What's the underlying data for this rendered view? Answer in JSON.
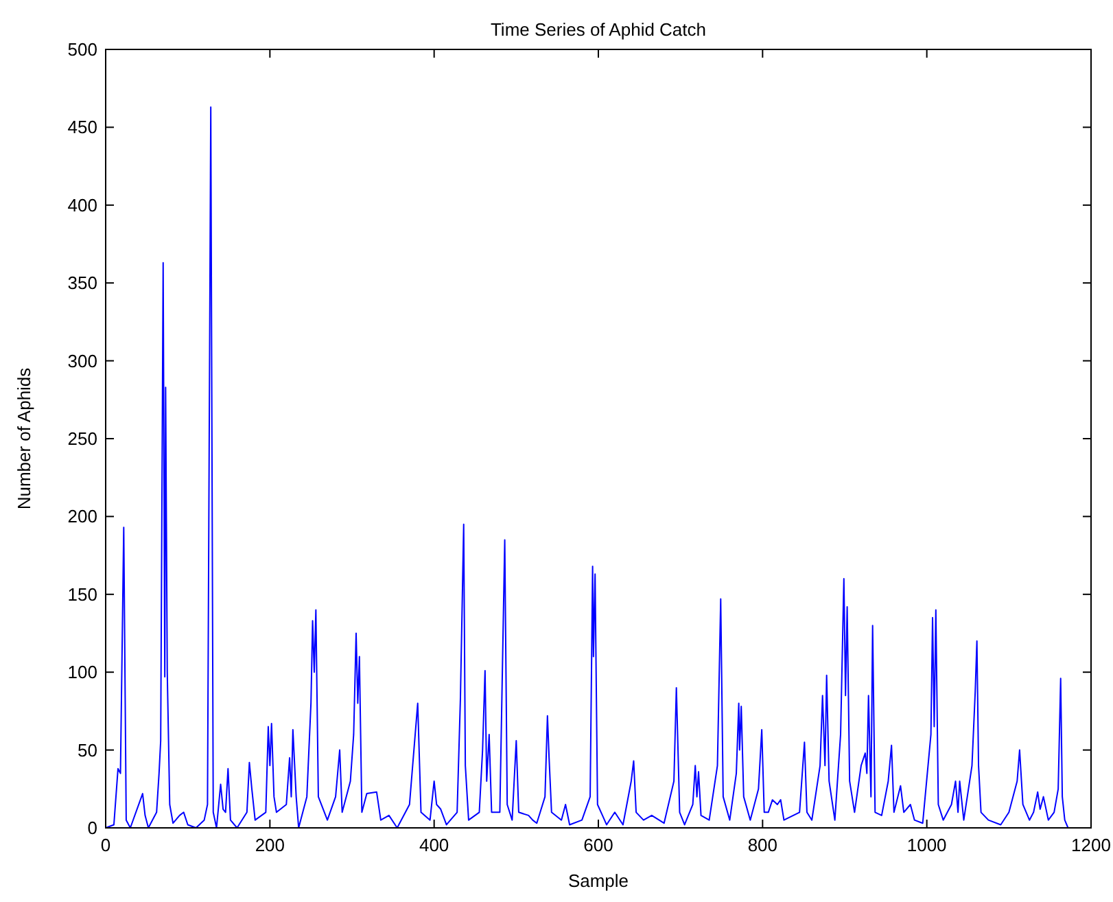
{
  "chart_data": {
    "type": "line",
    "title": "Time Series of Aphid Catch",
    "xlabel": "Sample",
    "ylabel": "Number of Aphids",
    "x": [
      0,
      10,
      15,
      18,
      22,
      25,
      30,
      45,
      48,
      52,
      62,
      65,
      67,
      70,
      72,
      73,
      75,
      78,
      82,
      90,
      95,
      100,
      110,
      120,
      124,
      128,
      131,
      135,
      140,
      143,
      146,
      149,
      152,
      160,
      172,
      175,
      178,
      182,
      195,
      198,
      200,
      202,
      205,
      208,
      220,
      224,
      226,
      228,
      232,
      235,
      245,
      250,
      252,
      254,
      256,
      259,
      270,
      280,
      285,
      288,
      298,
      302,
      305,
      307,
      309,
      312,
      318,
      330,
      335,
      345,
      355,
      370,
      380,
      384,
      395,
      400,
      403,
      408,
      415,
      428,
      432,
      436,
      438,
      442,
      455,
      459,
      462,
      464,
      467,
      470,
      480,
      486,
      489,
      495,
      500,
      503,
      515,
      520,
      525,
      535,
      538,
      540,
      543,
      555,
      560,
      565,
      580,
      590,
      593,
      594,
      596,
      599,
      605,
      610,
      620,
      630,
      640,
      643,
      646,
      655,
      665,
      680,
      692,
      695,
      699,
      705,
      715,
      718,
      720,
      722,
      725,
      735,
      745,
      749,
      752,
      760,
      768,
      771,
      772,
      774,
      777,
      785,
      795,
      799,
      802,
      807,
      812,
      818,
      822,
      826,
      845,
      851,
      854,
      860,
      870,
      873,
      876,
      878,
      881,
      888,
      895,
      899,
      901,
      903,
      906,
      912,
      920,
      925,
      927,
      929,
      932,
      934,
      937,
      945,
      953,
      957,
      960,
      968,
      972,
      980,
      985,
      995,
      1005,
      1007,
      1009,
      1011,
      1014,
      1020,
      1030,
      1035,
      1038,
      1040,
      1045,
      1055,
      1059,
      1061,
      1063,
      1066,
      1075,
      1090,
      1100,
      1110,
      1113,
      1117,
      1125,
      1130,
      1135,
      1138,
      1142,
      1148,
      1155,
      1160,
      1163,
      1165,
      1168,
      1172
    ],
    "series": [
      {
        "color": "#0000ff",
        "values": [
          0,
          2,
          38,
          35,
          193,
          5,
          0,
          22,
          8,
          0,
          10,
          35,
          56,
          363,
          97,
          283,
          100,
          15,
          3,
          8,
          10,
          2,
          0,
          5,
          15,
          463,
          10,
          0,
          28,
          12,
          10,
          38,
          5,
          0,
          10,
          42,
          25,
          5,
          10,
          65,
          40,
          67,
          20,
          10,
          15,
          45,
          20,
          63,
          20,
          0,
          20,
          80,
          133,
          100,
          140,
          20,
          5,
          20,
          50,
          10,
          30,
          60,
          125,
          80,
          110,
          10,
          22,
          23,
          5,
          8,
          0,
          15,
          80,
          10,
          5,
          30,
          15,
          12,
          2,
          10,
          83,
          195,
          40,
          5,
          10,
          50,
          101,
          30,
          60,
          10,
          10,
          185,
          15,
          5,
          56,
          10,
          8,
          5,
          3,
          20,
          72,
          45,
          10,
          5,
          15,
          2,
          5,
          20,
          168,
          110,
          163,
          15,
          8,
          2,
          10,
          2,
          30,
          43,
          10,
          5,
          8,
          3,
          30,
          90,
          10,
          2,
          15,
          40,
          20,
          36,
          8,
          5,
          40,
          147,
          20,
          5,
          35,
          80,
          50,
          78,
          20,
          5,
          25,
          63,
          10,
          10,
          18,
          15,
          18,
          5,
          10,
          55,
          10,
          5,
          40,
          85,
          40,
          98,
          30,
          5,
          60,
          160,
          85,
          142,
          30,
          10,
          40,
          48,
          35,
          85,
          20,
          130,
          10,
          8,
          30,
          53,
          10,
          27,
          10,
          15,
          5,
          3,
          60,
          135,
          65,
          140,
          15,
          5,
          15,
          30,
          10,
          30,
          5,
          40,
          88,
          120,
          40,
          10,
          5,
          2,
          10,
          30,
          50,
          15,
          5,
          10,
          23,
          12,
          20,
          5,
          10,
          25,
          96,
          20,
          5,
          0
        ]
      }
    ],
    "xlim": [
      0,
      1200
    ],
    "xticks": [
      0,
      200,
      400,
      600,
      800,
      1000,
      1200
    ],
    "ylim": [
      0,
      500
    ],
    "yticks": [
      0,
      50,
      100,
      150,
      200,
      250,
      300,
      350,
      400,
      450,
      500
    ],
    "grid": false
  }
}
